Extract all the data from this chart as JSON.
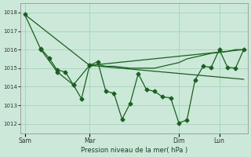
{
  "bg_color": "#cce8d8",
  "grid_color": "#9ecfb4",
  "line_color": "#1a6020",
  "xlabel": "Pression niveau de la mer( hPa )",
  "ylim": [
    1011.5,
    1018.5
  ],
  "yticks": [
    1012,
    1013,
    1014,
    1015,
    1016,
    1017,
    1018
  ],
  "xlim": [
    -0.5,
    27.5
  ],
  "day_ticks": [
    0,
    8,
    19,
    24
  ],
  "day_labels": [
    "Sam",
    "Mar",
    "Dim",
    "Lun"
  ],
  "line1_x": [
    0,
    2,
    4,
    6,
    8
  ],
  "line1_y": [
    1017.9,
    1016.0,
    1014.8,
    1014.1,
    1015.15
  ],
  "line2_x": [
    0,
    1,
    2,
    3,
    4,
    5,
    6,
    7,
    8,
    9,
    10,
    11,
    12,
    13,
    14,
    15,
    16,
    17,
    18,
    19,
    20,
    21,
    22,
    23,
    24,
    25,
    26,
    27
  ],
  "line2_y": [
    1017.9,
    1017.4,
    1016.7,
    1016.2,
    1015.5,
    1015.2,
    1015.0,
    1015.1,
    1015.1,
    1015.2,
    1015.1,
    1015.1,
    1015.05,
    1015.0,
    1015.0,
    1015.0,
    1015.0,
    1015.1,
    1015.2,
    1015.3,
    1015.5,
    1015.6,
    1015.7,
    1015.8,
    1015.85,
    1015.9,
    1016.0,
    1016.0
  ],
  "line3_x": [
    2,
    3,
    4,
    5,
    6,
    7,
    8,
    9,
    10,
    11,
    12,
    13,
    14,
    15,
    16,
    17,
    18,
    19,
    20,
    21,
    22,
    23,
    24,
    25,
    26,
    27
  ],
  "line3_y": [
    1016.05,
    1015.55,
    1014.9,
    1014.8,
    1014.1,
    1013.35,
    1015.15,
    1015.35,
    1013.75,
    1013.65,
    1012.25,
    1013.1,
    1014.7,
    1013.85,
    1013.75,
    1013.45,
    1013.4,
    1012.05,
    1012.2,
    1014.35,
    1015.1,
    1015.05,
    1016.0,
    1015.05,
    1015.0,
    1016.0
  ],
  "line4_x": [
    0,
    8,
    27
  ],
  "line4_y": [
    1017.9,
    1015.15,
    1016.0
  ],
  "line5_x": [
    8,
    27
  ],
  "line5_y": [
    1015.15,
    1014.4
  ]
}
